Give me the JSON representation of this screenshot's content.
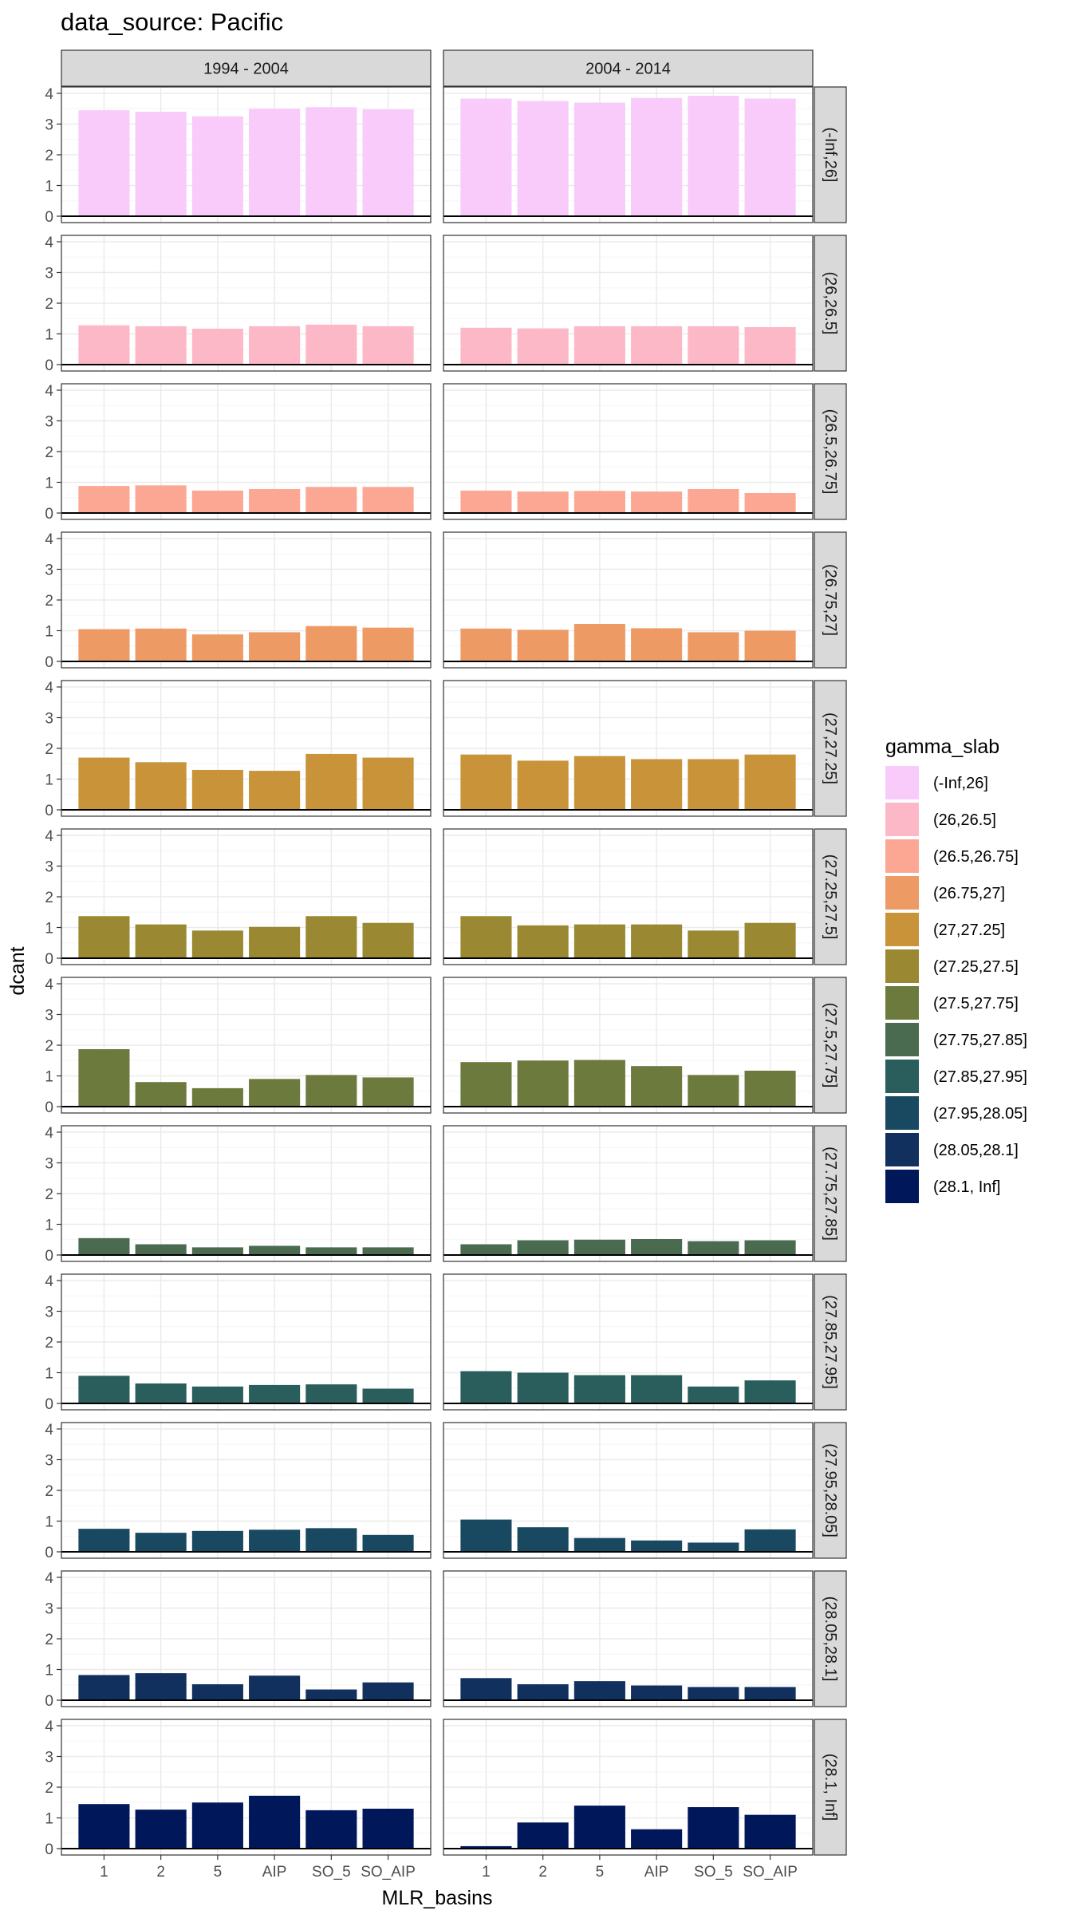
{
  "chart_data": {
    "type": "bar",
    "title": "data_source: Pacific",
    "xlabel": "MLR_basins",
    "ylabel": "dcant",
    "ylim": [
      0,
      4
    ],
    "yticks": [
      0,
      1,
      2,
      3,
      4
    ],
    "grid": true,
    "legend": {
      "title": "gamma_slab",
      "position": "right"
    },
    "categories": [
      "1",
      "2",
      "5",
      "AIP",
      "SO_5",
      "SO_AIP"
    ],
    "columns": [
      "1994 - 2004",
      "2004 - 2014"
    ],
    "rows": [
      {
        "label": "(-Inf,26]",
        "color": "#F8CBFA",
        "values": [
          [
            3.45,
            3.4,
            3.25,
            3.5,
            3.55,
            3.48
          ],
          [
            3.83,
            3.75,
            3.7,
            3.85,
            3.92,
            3.83
          ]
        ]
      },
      {
        "label": "(26,26.5]",
        "color": "#FDB8C8",
        "values": [
          [
            1.28,
            1.25,
            1.17,
            1.25,
            1.3,
            1.25
          ],
          [
            1.2,
            1.18,
            1.25,
            1.25,
            1.25,
            1.22
          ]
        ]
      },
      {
        "label": "(26.5,26.75]",
        "color": "#FCA794",
        "values": [
          [
            0.88,
            0.9,
            0.73,
            0.78,
            0.85,
            0.85
          ],
          [
            0.73,
            0.7,
            0.72,
            0.7,
            0.78,
            0.65
          ]
        ]
      },
      {
        "label": "(26.75,27]",
        "color": "#EE9A65",
        "values": [
          [
            1.05,
            1.07,
            0.88,
            0.95,
            1.15,
            1.1
          ],
          [
            1.07,
            1.03,
            1.22,
            1.08,
            0.95,
            1.0
          ]
        ]
      },
      {
        "label": "(27,27.25]",
        "color": "#C89339",
        "values": [
          [
            1.7,
            1.55,
            1.3,
            1.27,
            1.82,
            1.7
          ],
          [
            1.8,
            1.6,
            1.75,
            1.65,
            1.65,
            1.8
          ]
        ]
      },
      {
        "label": "(27.25,27.5]",
        "color": "#9A8932",
        "values": [
          [
            1.37,
            1.1,
            0.9,
            1.02,
            1.37,
            1.15
          ],
          [
            1.37,
            1.07,
            1.1,
            1.1,
            0.9,
            1.15
          ]
        ]
      },
      {
        "label": "(27.5,27.75]",
        "color": "#6D7A3D",
        "values": [
          [
            1.87,
            0.8,
            0.6,
            0.9,
            1.03,
            0.95
          ],
          [
            1.45,
            1.5,
            1.52,
            1.32,
            1.03,
            1.17
          ]
        ]
      },
      {
        "label": "(27.75,27.85]",
        "color": "#4A6B4F",
        "values": [
          [
            0.55,
            0.35,
            0.25,
            0.3,
            0.25,
            0.25
          ],
          [
            0.35,
            0.48,
            0.5,
            0.52,
            0.45,
            0.48
          ]
        ]
      },
      {
        "label": "(27.85,27.95]",
        "color": "#2A5E5C",
        "values": [
          [
            0.9,
            0.65,
            0.55,
            0.6,
            0.62,
            0.48
          ],
          [
            1.05,
            1.0,
            0.92,
            0.92,
            0.55,
            0.75
          ]
        ]
      },
      {
        "label": "(27.95,28.05]",
        "color": "#194960",
        "values": [
          [
            0.75,
            0.62,
            0.68,
            0.72,
            0.77,
            0.55
          ],
          [
            1.05,
            0.8,
            0.45,
            0.37,
            0.3,
            0.73
          ]
        ]
      },
      {
        "label": "(28.05,28.1]",
        "color": "#12305E",
        "values": [
          [
            0.82,
            0.88,
            0.52,
            0.8,
            0.35,
            0.58
          ],
          [
            0.72,
            0.52,
            0.62,
            0.48,
            0.43,
            0.43
          ]
        ]
      },
      {
        "label": "(28.1, Inf]",
        "color": "#00175A",
        "values": [
          [
            1.45,
            1.27,
            1.5,
            1.72,
            1.25,
            1.3
          ],
          [
            0.08,
            0.85,
            1.4,
            0.63,
            1.35,
            1.1
          ]
        ]
      }
    ]
  }
}
